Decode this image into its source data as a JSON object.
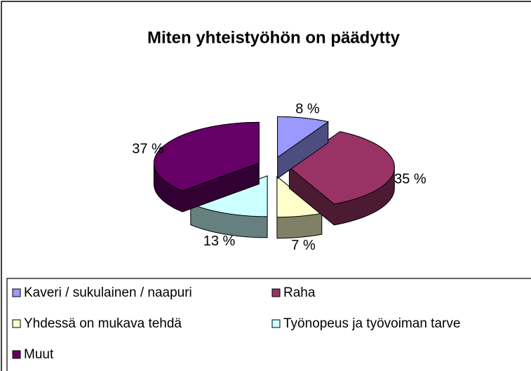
{
  "chart_data": {
    "type": "pie",
    "title": "Miten yhteistyöhön on päädytty",
    "categories": [
      "Kaveri / sukulainen / naapuri",
      "Raha",
      "Yhdessä on mukava tehdä",
      "Työnopeus ja työvoiman tarve",
      "Muut"
    ],
    "values": [
      8,
      35,
      7,
      13,
      37
    ],
    "value_labels": [
      "8 %",
      "35 %",
      "7 %",
      "13 %",
      "37 %"
    ],
    "colors": [
      "#9999ff",
      "#993366",
      "#ffffcc",
      "#ccffff",
      "#660066"
    ],
    "legend": "bottom"
  }
}
